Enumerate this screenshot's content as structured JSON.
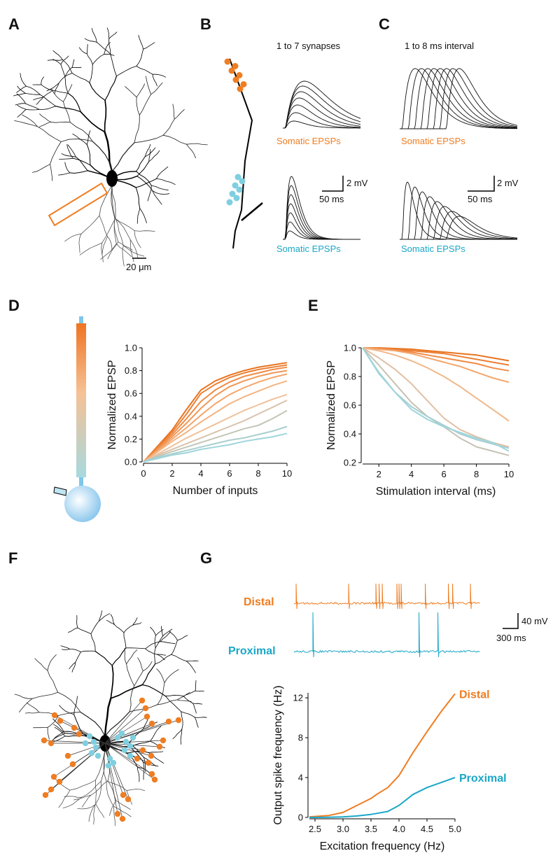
{
  "panel_labels": [
    "A",
    "B",
    "C",
    "D",
    "E",
    "F",
    "G"
  ],
  "annotations": {
    "synapses": "1 to 7 synapses",
    "interval": "1 to 8 ms interval",
    "b_top": "Somatic EPSPs",
    "b_bottom": "Somatic EPSPs",
    "c_top": "Somatic EPSPs",
    "c_bottom": "Somatic EPSPs",
    "b_mv": "2 mV",
    "b_ms": "50 ms",
    "c_mv": "2 mV",
    "c_ms": "50 ms",
    "a_um": "20 μm",
    "g_distal": "Distal",
    "g_proximal": "Proximal",
    "g_mv": "40 mV",
    "g_ms": "300 ms"
  },
  "chart_data": [
    {
      "type": "line",
      "xlabel": "Number of inputs",
      "ylabel": "Normalized EPSP",
      "x": [
        0,
        1,
        2,
        3,
        4,
        5,
        6,
        7,
        8,
        9,
        10
      ],
      "xlim": [
        0,
        10
      ],
      "xticks": [
        0,
        2,
        4,
        6,
        8,
        10
      ],
      "ylim": [
        0,
        1
      ],
      "yticks": [
        {
          "value": 0,
          "label": "0.0"
        },
        0.2,
        0.4,
        0.6,
        0.8,
        {
          "value": 1,
          "label": "1.0"
        }
      ],
      "series": [
        {
          "color": "#e8731f",
          "values": [
            0,
            0.14,
            0.28,
            0.46,
            0.63,
            0.71,
            0.76,
            0.8,
            0.83,
            0.85,
            0.87
          ]
        },
        {
          "color": "#ec7f33",
          "values": [
            0,
            0.13,
            0.26,
            0.42,
            0.6,
            0.68,
            0.74,
            0.78,
            0.81,
            0.83,
            0.85
          ]
        },
        {
          "color": "#ef8b45",
          "values": [
            0,
            0.12,
            0.24,
            0.38,
            0.53,
            0.63,
            0.7,
            0.75,
            0.78,
            0.81,
            0.83
          ]
        },
        {
          "color": "#f19858",
          "values": [
            0,
            0.11,
            0.22,
            0.34,
            0.47,
            0.58,
            0.66,
            0.71,
            0.75,
            0.78,
            0.8
          ]
        },
        {
          "color": "#f3a66c",
          "values": [
            0,
            0.1,
            0.2,
            0.3,
            0.41,
            0.51,
            0.59,
            0.65,
            0.7,
            0.74,
            0.77
          ]
        },
        {
          "color": "#f3b482",
          "values": [
            0,
            0.09,
            0.18,
            0.26,
            0.35,
            0.43,
            0.51,
            0.57,
            0.62,
            0.67,
            0.71
          ]
        },
        {
          "color": "#f0c09a",
          "values": [
            0,
            0.07,
            0.14,
            0.21,
            0.27,
            0.33,
            0.39,
            0.45,
            0.5,
            0.55,
            0.59
          ]
        },
        {
          "color": "#d8c3ac",
          "values": [
            0,
            0.06,
            0.11,
            0.16,
            0.21,
            0.26,
            0.31,
            0.36,
            0.42,
            0.48,
            0.54
          ]
        },
        {
          "color": "#c0c6b6",
          "values": [
            0,
            0.05,
            0.09,
            0.13,
            0.17,
            0.21,
            0.25,
            0.29,
            0.32,
            0.38,
            0.45
          ]
        },
        {
          "color": "#a9cfcd",
          "values": [
            0,
            0.04,
            0.07,
            0.1,
            0.13,
            0.16,
            0.19,
            0.21,
            0.24,
            0.27,
            0.31
          ]
        },
        {
          "color": "#9ed5dc",
          "values": [
            0,
            0.03,
            0.06,
            0.08,
            0.11,
            0.13,
            0.15,
            0.18,
            0.2,
            0.22,
            0.25
          ]
        }
      ]
    },
    {
      "type": "line",
      "xlabel": "Stimulation interval (ms)",
      "ylabel": "Normalized EPSP",
      "x": [
        1,
        2,
        3,
        4,
        5,
        6,
        7,
        8,
        9,
        10
      ],
      "xlim": [
        1,
        10
      ],
      "xticks": [
        2,
        4,
        6,
        8,
        10
      ],
      "ylim": [
        0.2,
        1
      ],
      "yticks": [
        0.2,
        0.4,
        0.6,
        0.8,
        {
          "value": 1,
          "label": "1.0"
        }
      ],
      "series": [
        {
          "color": "#e8731f",
          "values": [
            1,
            1,
            0.995,
            0.99,
            0.98,
            0.97,
            0.96,
            0.95,
            0.93,
            0.91
          ]
        },
        {
          "color": "#ec7f33",
          "values": [
            1,
            1,
            0.99,
            0.98,
            0.97,
            0.96,
            0.94,
            0.92,
            0.9,
            0.88
          ]
        },
        {
          "color": "#ef8b45",
          "values": [
            1,
            0.995,
            0.985,
            0.97,
            0.95,
            0.93,
            0.91,
            0.89,
            0.86,
            0.84
          ]
        },
        {
          "color": "#f3a66c",
          "values": [
            1,
            0.99,
            0.98,
            0.96,
            0.93,
            0.9,
            0.87,
            0.83,
            0.79,
            0.76
          ]
        },
        {
          "color": "#f0b88a",
          "values": [
            1,
            0.98,
            0.95,
            0.91,
            0.86,
            0.8,
            0.73,
            0.65,
            0.57,
            0.49
          ]
        },
        {
          "color": "#e0c0a4",
          "values": [
            1,
            0.93,
            0.85,
            0.75,
            0.63,
            0.51,
            0.43,
            0.38,
            0.34,
            0.31
          ]
        },
        {
          "color": "#c6c2b4",
          "values": [
            1,
            0.88,
            0.75,
            0.62,
            0.52,
            0.45,
            0.37,
            0.31,
            0.28,
            0.25
          ]
        },
        {
          "color": "#a9cfd2",
          "values": [
            1,
            0.83,
            0.69,
            0.59,
            0.52,
            0.46,
            0.4,
            0.36,
            0.33,
            0.3
          ]
        },
        {
          "color": "#9ed5dc",
          "values": [
            1,
            0.82,
            0.69,
            0.57,
            0.5,
            0.45,
            0.41,
            0.37,
            0.34,
            0.28
          ]
        }
      ]
    },
    {
      "type": "line",
      "xlabel": "Excitation frequency (Hz)",
      "ylabel": "Output spike frequency (Hz)",
      "x": [
        2.4,
        2.5,
        2.75,
        3,
        3.25,
        3.5,
        3.6,
        3.8,
        4,
        4.25,
        4.5,
        4.75,
        5
      ],
      "xlim": [
        2.4,
        5
      ],
      "xticks": [
        2.5,
        {
          "value": 3,
          "label": "3.0"
        },
        3.5,
        {
          "value": 4,
          "label": "4.0"
        },
        4.5,
        {
          "value": 5,
          "label": "5.0"
        }
      ],
      "ylim": [
        0,
        12.5
      ],
      "yticks": [
        0,
        4,
        8,
        12
      ],
      "series": [
        {
          "name": "Distal",
          "color": "#ef7d22",
          "values": [
            0.05,
            0.1,
            0.2,
            0.5,
            1.2,
            1.9,
            2.3,
            3,
            4.2,
            6.5,
            8.6,
            10.6,
            12.4
          ]
        },
        {
          "name": "Proximal",
          "color": "#1aa7c8",
          "values": [
            0,
            0,
            0.02,
            0.05,
            0.15,
            0.3,
            0.4,
            0.6,
            1.2,
            2.3,
            3,
            3.5,
            4
          ]
        }
      ]
    }
  ]
}
